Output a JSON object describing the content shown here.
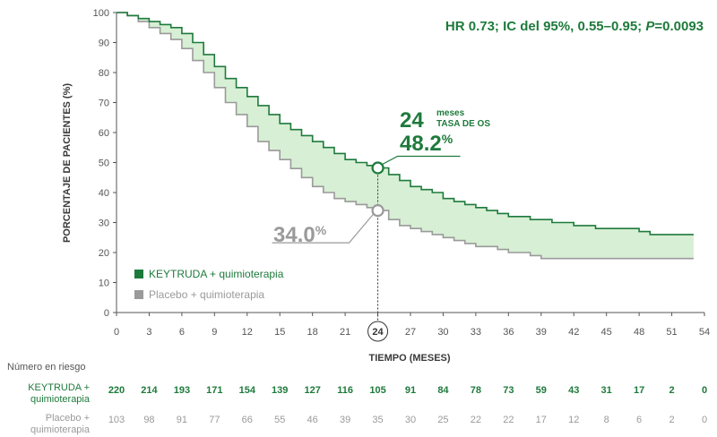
{
  "colors": {
    "keytruda": "#1e7a3c",
    "placebo": "#9a9a9a",
    "fill": "#d7efd4",
    "axis": "#555555"
  },
  "annotations": {
    "hr": "HR 0.73; IC del 95%, 0.55–0.95; ",
    "hr_p_letter": "P",
    "hr_p_value": "=0.0093",
    "months_number": "24",
    "months_word": "meses",
    "os_rate_label": "TASA DE OS",
    "keytruda_value": "48.2",
    "placebo_value": "34.0",
    "percent_sign": "%",
    "highlight_x_label": "24"
  },
  "legend": {
    "keytruda": "KEYTRUDA + quimioterapia",
    "placebo": "Placebo + quimioterapia"
  },
  "risk_table": {
    "title": "Número en riesgo",
    "keytruda_label_line1": "KEYTRUDA +",
    "keytruda_label_line2": "quimioterapia",
    "placebo_label_line1": "Placebo +",
    "placebo_label_line2": "quimioterapia",
    "keytruda": [
      "220",
      "214",
      "193",
      "171",
      "154",
      "139",
      "127",
      "116",
      "105",
      "91",
      "84",
      "78",
      "73",
      "59",
      "43",
      "31",
      "17",
      "2",
      "0"
    ],
    "placebo": [
      "103",
      "98",
      "91",
      "77",
      "66",
      "55",
      "46",
      "39",
      "35",
      "30",
      "25",
      "22",
      "22",
      "17",
      "12",
      "8",
      "6",
      "2",
      "0"
    ]
  },
  "chart_data": {
    "type": "line",
    "title": "",
    "xlabel": "TIEMPO (MESES)",
    "ylabel": "PORCENTAJE DE PACIENTES (%)",
    "xlim": [
      0,
      54
    ],
    "ylim": [
      0,
      100
    ],
    "x_ticks": [
      0,
      3,
      6,
      9,
      12,
      15,
      18,
      21,
      24,
      27,
      30,
      33,
      36,
      39,
      42,
      45,
      48,
      51,
      54
    ],
    "y_ticks": [
      0,
      10,
      20,
      30,
      40,
      50,
      60,
      70,
      80,
      90,
      100
    ],
    "grid": false,
    "legend_position": "bottom-left",
    "series": [
      {
        "name": "KEYTRUDA + quimioterapia",
        "x": [
          0,
          1,
          2,
          3,
          4,
          5,
          6,
          7,
          8,
          9,
          10,
          11,
          12,
          13,
          14,
          15,
          16,
          17,
          18,
          19,
          20,
          21,
          22,
          23,
          24,
          25,
          26,
          27,
          28,
          29,
          30,
          31,
          32,
          33,
          34,
          35,
          36,
          37,
          38,
          39,
          40,
          41,
          42,
          43,
          44,
          45,
          46,
          47,
          48,
          49,
          50,
          51,
          52,
          53
        ],
        "y": [
          100,
          99,
          98,
          97,
          96,
          95,
          93,
          90,
          86,
          82,
          78,
          75,
          72,
          69,
          66,
          63,
          61,
          59,
          57,
          55,
          53,
          51,
          50,
          49,
          48.2,
          46,
          44,
          42,
          41,
          40,
          38,
          37,
          36,
          35,
          34,
          33,
          32,
          32,
          31,
          31,
          30,
          30,
          29,
          29,
          28,
          28,
          28,
          28,
          27,
          26,
          26,
          26,
          26,
          26
        ]
      },
      {
        "name": "Placebo + quimioterapia",
        "x": [
          0,
          1,
          2,
          3,
          4,
          5,
          6,
          7,
          8,
          9,
          10,
          11,
          12,
          13,
          14,
          15,
          16,
          17,
          18,
          19,
          20,
          21,
          22,
          23,
          24,
          25,
          26,
          27,
          28,
          29,
          30,
          31,
          32,
          33,
          34,
          35,
          36,
          37,
          38,
          39,
          40,
          41,
          42,
          43,
          44,
          45,
          46,
          47,
          48,
          49,
          50,
          51,
          52,
          53
        ],
        "y": [
          100,
          99,
          97,
          95,
          93,
          91,
          88,
          84,
          80,
          75,
          70,
          66,
          62,
          57,
          54,
          51,
          48,
          45,
          42,
          40,
          38,
          37,
          36,
          35,
          34.0,
          31,
          29,
          28,
          27,
          26,
          25,
          24,
          23,
          22,
          22,
          21,
          20,
          20,
          19,
          18,
          18,
          18,
          18,
          18,
          18,
          18,
          18,
          18,
          18,
          18,
          18,
          18,
          18,
          18
        ]
      }
    ],
    "highlight": {
      "x": 24,
      "keytruda_y": 48.2,
      "placebo_y": 34.0
    }
  }
}
